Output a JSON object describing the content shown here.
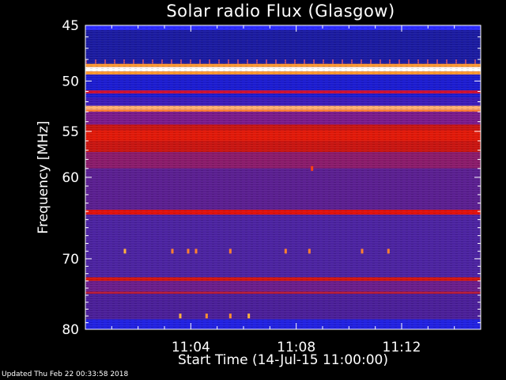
{
  "chart_data": {
    "type": "heatmap",
    "title": "Solar radio Flux (Glasgow)",
    "xlabel": "Start Time (14-Jul-15 11:00:00)",
    "ylabel": "Frequency [MHz]",
    "xlim_minutes": [
      0,
      15
    ],
    "ylim_mhz": [
      45,
      80
    ],
    "y_scale": "log",
    "x_ticks": [
      {
        "value": 4,
        "label": "11:04"
      },
      {
        "value": 8,
        "label": "11:08"
      },
      {
        "value": 12,
        "label": "11:12"
      }
    ],
    "y_ticks": [
      {
        "value": 45,
        "label": "45"
      },
      {
        "value": 50,
        "label": "50"
      },
      {
        "value": 55,
        "label": "55"
      },
      {
        "value": 60,
        "label": "60"
      },
      {
        "value": 70,
        "label": "70"
      },
      {
        "value": 80,
        "label": "80"
      }
    ],
    "y_minor_ticks": [
      46,
      47,
      48,
      49,
      51,
      52,
      53,
      54,
      56,
      57,
      58,
      59,
      61,
      62,
      63,
      64,
      65,
      66,
      67,
      68,
      69,
      71,
      72,
      73,
      74,
      75,
      76,
      77,
      78,
      79
    ],
    "x_minor_step_minutes": 1,
    "colormap": [
      "#000000",
      "#1414ff",
      "#6a1a9a",
      "#a01a70",
      "#d01010",
      "#ff6a00",
      "#ffd060",
      "#ffffff"
    ],
    "bands": [
      {
        "from": 45.0,
        "to": 80.0,
        "color": "#50249a"
      },
      {
        "from": 45.0,
        "to": 45.4,
        "color": "#2b2bff"
      },
      {
        "from": 45.4,
        "to": 48.4,
        "color": "#1a1aa0"
      },
      {
        "from": 48.4,
        "to": 48.7,
        "color": "#ff9a30"
      },
      {
        "from": 48.7,
        "to": 49.1,
        "color": "#ffffff"
      },
      {
        "from": 49.1,
        "to": 49.4,
        "color": "#ff9a30"
      },
      {
        "from": 49.4,
        "to": 51.6,
        "color": "#1b1bd0"
      },
      {
        "from": 50.9,
        "to": 51.2,
        "color": "#d01030"
      },
      {
        "from": 51.6,
        "to": 52.4,
        "color": "#3a1ab8"
      },
      {
        "from": 52.4,
        "to": 52.8,
        "color": "#ffb070"
      },
      {
        "from": 52.8,
        "to": 53.0,
        "color": "#ff7a30"
      },
      {
        "from": 53.0,
        "to": 54.3,
        "color": "#7a1a8a"
      },
      {
        "from": 54.3,
        "to": 57.2,
        "color": "#c81410"
      },
      {
        "from": 54.9,
        "to": 56.0,
        "color": "#e01808"
      },
      {
        "from": 57.2,
        "to": 59.0,
        "color": "#8a1a6a"
      },
      {
        "from": 59.0,
        "to": 63.8,
        "color": "#5a1e90"
      },
      {
        "from": 63.8,
        "to": 64.4,
        "color": "#e0100c"
      },
      {
        "from": 64.4,
        "to": 72.5,
        "color": "#4b22a0"
      },
      {
        "from": 72.5,
        "to": 73.0,
        "color": "#d4140c"
      },
      {
        "from": 73.0,
        "to": 74.5,
        "color": "#6a1c8a"
      },
      {
        "from": 74.5,
        "to": 74.8,
        "color": "#b81830"
      },
      {
        "from": 74.8,
        "to": 78.5,
        "color": "#4a1e98"
      },
      {
        "from": 78.5,
        "to": 80.0,
        "color": "#2020e0"
      }
    ],
    "bursts": [
      {
        "t": 1.5,
        "f": 69.0,
        "color": "#ffb040"
      },
      {
        "t": 3.3,
        "f": 69.0,
        "color": "#ff8030"
      },
      {
        "t": 3.9,
        "f": 69.0,
        "color": "#ff8030"
      },
      {
        "t": 4.2,
        "f": 69.0,
        "color": "#ff8030"
      },
      {
        "t": 5.5,
        "f": 69.0,
        "color": "#ff8030"
      },
      {
        "t": 7.6,
        "f": 69.0,
        "color": "#ff8030"
      },
      {
        "t": 8.5,
        "f": 69.0,
        "color": "#ff8030"
      },
      {
        "t": 10.5,
        "f": 69.0,
        "color": "#ff8030"
      },
      {
        "t": 11.5,
        "f": 69.0,
        "color": "#ff8030"
      },
      {
        "t": 3.6,
        "f": 78.0,
        "color": "#ffb040"
      },
      {
        "t": 4.6,
        "f": 78.0,
        "color": "#ff9030"
      },
      {
        "t": 5.5,
        "f": 78.0,
        "color": "#ff9030"
      },
      {
        "t": 6.2,
        "f": 78.0,
        "color": "#ffb040"
      },
      {
        "t": 8.6,
        "f": 59.0,
        "color": "#ff4010"
      }
    ]
  },
  "footer": "Updated Thu Feb 22 00:33:58 2018"
}
